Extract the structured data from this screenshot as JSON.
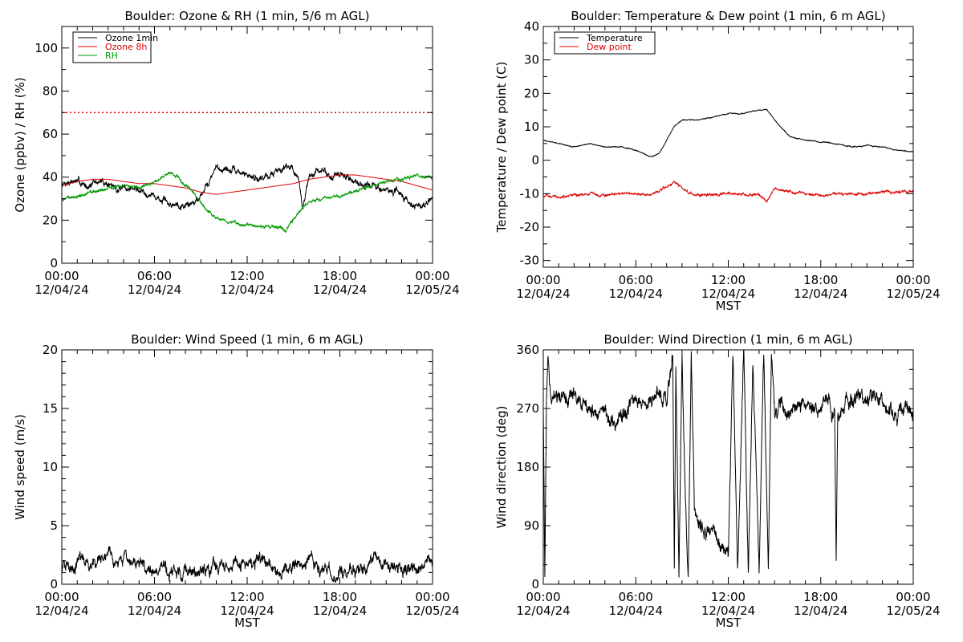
{
  "colors": {
    "ozone_1min": "#000000",
    "ozone_8h": "#dd0000",
    "rh": "#009900",
    "temperature": "#000000",
    "dew_point": "#dd0000",
    "wind_speed": "#000000",
    "wind_direction": "#000000",
    "reference_line": "#dd0000"
  },
  "chart_data": [
    {
      "id": "ozone-rh",
      "type": "line",
      "title": "Boulder: Ozone & RH (1 min, 5/6 m AGL)",
      "ylabel": "Ozone (ppbv) / RH (%)",
      "xlabel": "",
      "ylim": [
        0,
        110
      ],
      "yticks": [
        0,
        20,
        40,
        60,
        80,
        100
      ],
      "yminor": 10,
      "xlim_hours": [
        0,
        24
      ],
      "xtick_times": [
        "00:00",
        "06:00",
        "12:00",
        "18:00",
        "00:00"
      ],
      "xtick_dates": [
        "12/04/24",
        "12/04/24",
        "12/04/24",
        "12/04/24",
        "12/05/24"
      ],
      "legend_placement": "top-left",
      "reference_lines": [
        {
          "y": 70,
          "style": "dotted",
          "color_key": "reference_line"
        }
      ],
      "series": [
        {
          "name": "Ozone 1min",
          "color_key": "ozone_1min",
          "noise": 1.6,
          "x": [
            0,
            0.5,
            1,
            1.5,
            2,
            2.5,
            3,
            3.5,
            4,
            4.5,
            5,
            5.5,
            6,
            6.5,
            7,
            7.5,
            8,
            8.5,
            9,
            9.5,
            10,
            10.5,
            11,
            11.5,
            12,
            12.5,
            13,
            13.5,
            14,
            14.5,
            15,
            15.3,
            15.6,
            16,
            16.5,
            17,
            17.5,
            18,
            18.5,
            19,
            19.5,
            20,
            20.5,
            21,
            21.5,
            22,
            22.5,
            23,
            23.5,
            24
          ],
          "y": [
            37,
            38,
            38,
            36,
            37,
            38,
            37,
            35,
            34,
            35,
            34,
            33,
            31,
            29,
            27,
            28,
            27,
            28,
            32,
            38,
            44,
            44,
            43,
            42,
            41,
            40,
            40,
            41,
            43,
            46,
            44,
            38,
            26,
            40,
            42,
            43,
            40,
            41,
            40,
            38,
            37,
            36,
            35,
            34,
            33,
            32,
            29,
            26,
            27,
            30
          ]
        },
        {
          "name": "Ozone 8h",
          "color_key": "ozone_8h",
          "noise": 0,
          "x": [
            0,
            1,
            2,
            3,
            4,
            5,
            6,
            7,
            8,
            9,
            10,
            11,
            12,
            13,
            14,
            15,
            16,
            17,
            18,
            19,
            20,
            21,
            22,
            23,
            24
          ],
          "y": [
            36,
            38,
            39,
            39,
            38,
            37,
            37,
            36,
            35,
            33,
            32,
            33,
            34,
            35,
            36,
            37,
            39,
            40,
            41,
            41,
            40,
            39,
            38,
            36,
            34
          ]
        },
        {
          "name": "RH",
          "color_key": "rh",
          "noise": 0.7,
          "x": [
            0,
            1,
            2,
            3,
            4,
            5,
            6,
            6.5,
            7,
            7.5,
            8,
            8.5,
            9,
            9.5,
            10,
            11,
            12,
            13,
            14,
            14.5,
            15,
            15.5,
            16,
            17,
            18,
            19,
            20,
            21,
            22,
            23,
            24
          ],
          "y": [
            30,
            31,
            33,
            35,
            36,
            35,
            38,
            40,
            42,
            40,
            36,
            33,
            28,
            24,
            21,
            19,
            18,
            17,
            17,
            15,
            20,
            25,
            29,
            30,
            31,
            33,
            36,
            38,
            39,
            41,
            40
          ]
        }
      ]
    },
    {
      "id": "temp-dew",
      "type": "line",
      "title": "Boulder: Temperature & Dew point (1 min, 6 m AGL)",
      "ylabel": "Temperature / Dew point (C)",
      "xlabel": "MST",
      "ylim": [
        -32,
        40
      ],
      "yticks": [
        -30,
        -20,
        -10,
        0,
        10,
        20,
        30,
        40
      ],
      "yminor": 5,
      "xlim_hours": [
        0,
        24
      ],
      "xtick_times": [
        "00:00",
        "06:00",
        "12:00",
        "18:00",
        "00:00"
      ],
      "xtick_dates": [
        "12/04/24",
        "12/04/24",
        "12/04/24",
        "12/04/24",
        "12/05/24"
      ],
      "legend_placement": "top-left",
      "reference_lines": [],
      "series": [
        {
          "name": "Temperature",
          "color_key": "temperature",
          "noise": 0.15,
          "x": [
            0,
            1,
            2,
            3,
            4,
            5,
            6,
            7,
            7.5,
            8,
            8.5,
            9,
            10,
            11,
            12,
            13,
            14,
            14.5,
            15,
            16,
            17,
            18,
            19,
            20,
            21,
            22,
            23,
            24
          ],
          "y": [
            6,
            5,
            4,
            5,
            4,
            4,
            3,
            1,
            2,
            6,
            10,
            12,
            12,
            13,
            14,
            14,
            15,
            15,
            12,
            7,
            6,
            5.5,
            5,
            4,
            4.5,
            4,
            3,
            2.5
          ]
        },
        {
          "name": "Dew point",
          "color_key": "dew_point",
          "noise": 0.35,
          "x": [
            0,
            1,
            2,
            3,
            4,
            5,
            6,
            7,
            7.5,
            8,
            8.5,
            9,
            9.5,
            10,
            11,
            12,
            13,
            14,
            14.5,
            15,
            16,
            17,
            18,
            19,
            20,
            21,
            22,
            23,
            24
          ],
          "y": [
            -10.5,
            -11,
            -10.5,
            -10,
            -10.5,
            -10,
            -10,
            -10.5,
            -9,
            -8,
            -6.5,
            -8,
            -10,
            -10.5,
            -10,
            -10,
            -10,
            -10.5,
            -12,
            -8.5,
            -9.5,
            -10,
            -10.5,
            -10,
            -10,
            -10,
            -9.5,
            -9.5,
            -9.5
          ]
        }
      ]
    },
    {
      "id": "wind-speed",
      "type": "line",
      "title": "Boulder: Wind Speed (1 min, 6 m AGL)",
      "ylabel": "Wind speed (m/s)",
      "xlabel": "MST",
      "ylim": [
        0,
        20
      ],
      "yticks": [
        0,
        5,
        10,
        15,
        20
      ],
      "yminor": 1,
      "xlim_hours": [
        0,
        24
      ],
      "xtick_times": [
        "00:00",
        "06:00",
        "12:00",
        "18:00",
        "00:00"
      ],
      "xtick_dates": [
        "12/04/24",
        "12/04/24",
        "12/04/24",
        "12/04/24",
        "12/05/24"
      ],
      "legend_placement": "none",
      "reference_lines": [],
      "series": [
        {
          "name": "",
          "color_key": "wind_speed",
          "noise": 0.55,
          "clamp_min": 0,
          "x": [
            0,
            1,
            2,
            3,
            4,
            5,
            6,
            7,
            8,
            9,
            10,
            11,
            12,
            13,
            14,
            15,
            16,
            17,
            18,
            19,
            20,
            21,
            22,
            23,
            24
          ],
          "y": [
            1.3,
            1.8,
            2.0,
            2.0,
            2.2,
            1.6,
            1.2,
            1.0,
            1.1,
            0.8,
            1.4,
            1.6,
            1.8,
            2.2,
            0.6,
            1.6,
            2.1,
            1.0,
            0.9,
            1.2,
            1.9,
            1.8,
            1.2,
            1.5,
            1.7
          ]
        }
      ]
    },
    {
      "id": "wind-direction",
      "type": "line",
      "title": "Boulder: Wind Direction (1 min, 6 m AGL)",
      "ylabel": "Wind direction (deg)",
      "xlabel": "MST",
      "ylim": [
        0,
        360
      ],
      "yticks": [
        0,
        90,
        180,
        270,
        360
      ],
      "yminor": 30,
      "xlim_hours": [
        0,
        24
      ],
      "xtick_times": [
        "00:00",
        "06:00",
        "12:00",
        "18:00",
        "00:00"
      ],
      "xtick_dates": [
        "12/04/24",
        "12/04/24",
        "12/04/24",
        "12/04/24",
        "12/05/24"
      ],
      "legend_placement": "none",
      "reference_lines": [],
      "series": [
        {
          "name": "",
          "color_key": "wind_direction",
          "noise": 12,
          "clamp_min": 0,
          "clamp_max": 360,
          "x": [
            0,
            0.1,
            0.2,
            0.3,
            0.5,
            1,
            2,
            3,
            4,
            5,
            6,
            7,
            7.5,
            8,
            8.4,
            8.5,
            8.6,
            8.8,
            9,
            9.2,
            9.4,
            9.6,
            9.8,
            10,
            10.5,
            11,
            11.5,
            12,
            12.3,
            12.6,
            13,
            13.3,
            13.6,
            14,
            14.3,
            14.6,
            14.8,
            15,
            15.5,
            16,
            17,
            18,
            18.5,
            18.9,
            19,
            19.1,
            19.5,
            20,
            20.5,
            21,
            21.5,
            22,
            22.5,
            23,
            23.5,
            24
          ],
          "y": [
            270,
            10,
            280,
            350,
            290,
            280,
            290,
            270,
            260,
            250,
            285,
            280,
            300,
            280,
            350,
            20,
            340,
            5,
            350,
            150,
            10,
            360,
            120,
            90,
            80,
            80,
            60,
            40,
            360,
            10,
            360,
            20,
            350,
            30,
            360,
            20,
            355,
            260,
            270,
            260,
            270,
            265,
            280,
            260,
            30,
            260,
            275,
            280,
            290,
            285,
            290,
            280,
            270,
            260,
            270,
            260
          ]
        }
      ]
    }
  ]
}
